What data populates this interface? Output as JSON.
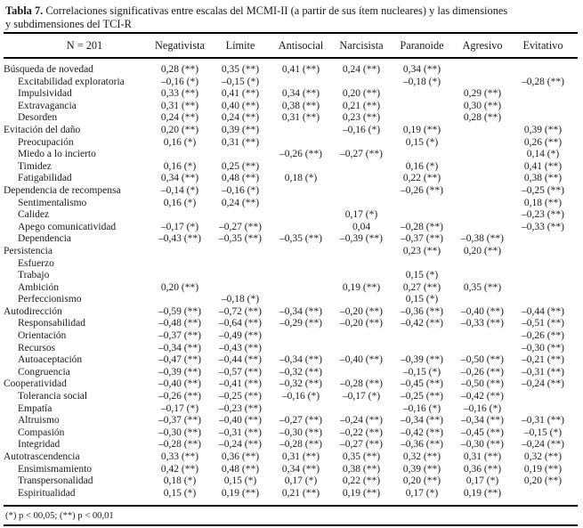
{
  "page": {
    "title_bold": "Tabla 7.",
    "title_rest_line1": " Correlaciones significativas entre escalas del MCMI-II (a partir de sus ítem nucleares) y las dimensiones",
    "title_line2": "y subdimensiones del TCI-R",
    "footnote": "(*) p < 00,05; (**) p < 00,01"
  },
  "table": {
    "columns": [
      "N = 201",
      "Negativista",
      "Límite",
      "Antisocial",
      "Narcisista",
      "Paranoide",
      "Agresivo",
      "Evitativo"
    ],
    "rows": [
      {
        "label": "Búsqueda de novedad",
        "indent": 0,
        "values": [
          "0,28 (**)",
          "0,35 (**)",
          "0,41 (**)",
          "0,24 (**)",
          "0,34 (**)",
          "",
          ""
        ]
      },
      {
        "label": "Excitabilidad exploratoria",
        "indent": 1,
        "values": [
          "–0,16 (*)",
          "–0,15 (*)",
          "",
          "",
          "–0,18 (*)",
          "",
          "–0,28 (**)"
        ]
      },
      {
        "label": "Impulsividad",
        "indent": 1,
        "values": [
          "0,33 (**)",
          "0,41 (**)",
          "0,34 (**)",
          "0,20 (**)",
          "",
          "0,29 (**)",
          ""
        ]
      },
      {
        "label": "Extravagancia",
        "indent": 1,
        "values": [
          "0,31 (**)",
          "0,40 (**)",
          "0,38 (**)",
          "0,21 (**)",
          "",
          "0,30 (**)",
          ""
        ]
      },
      {
        "label": "Desorden",
        "indent": 1,
        "values": [
          "0,24 (**)",
          "0,24 (**)",
          "0,31 (**)",
          "0,23 (**)",
          "",
          "0,28 (**)",
          ""
        ]
      },
      {
        "label": "Evitación del daño",
        "indent": 0,
        "values": [
          "0,20 (**)",
          "0,39 (**)",
          "",
          "–0,16 (*)",
          "0,19 (**)",
          "",
          "0,39 (**)"
        ]
      },
      {
        "label": "Preocupación",
        "indent": 1,
        "values": [
          "0,16 (*)",
          "0,31 (**)",
          "",
          "",
          "0,15 (*)",
          "",
          "0,26 (**)"
        ]
      },
      {
        "label": "Miedo a lo incierto",
        "indent": 1,
        "values": [
          "",
          "",
          "–0,26 (**)",
          "–0,27 (**)",
          "",
          "",
          "0,14 (*)"
        ]
      },
      {
        "label": "Timidez",
        "indent": 1,
        "values": [
          "0,16 (*)",
          "0,25 (**)",
          "",
          "",
          "0,16 (*)",
          "",
          "0,41 (**)"
        ]
      },
      {
        "label": "Fatigabilidad",
        "indent": 1,
        "values": [
          "0,34 (**)",
          "0,48 (**)",
          "0,18 (*)",
          "",
          "0,22 (**)",
          "",
          "0,38 (**)"
        ]
      },
      {
        "label": "Dependencia de recompensa",
        "indent": 0,
        "values": [
          "–0,14 (*)",
          "–0,16 (*)",
          "",
          "",
          "–0,26 (**)",
          "",
          "–0,25 (**)"
        ]
      },
      {
        "label": "Sentimentalismo",
        "indent": 1,
        "values": [
          "0,16 (*)",
          "0,24 (**)",
          "",
          "",
          "",
          "",
          "0,18 (**)"
        ]
      },
      {
        "label": "Calidez",
        "indent": 1,
        "values": [
          "",
          "",
          "",
          "0,17 (*)",
          "",
          "",
          "–0,23 (**)"
        ]
      },
      {
        "label": "Apego comunicatividad",
        "indent": 1,
        "values": [
          "–0,17 (*)",
          "–0,27 (**)",
          "",
          "0,04",
          "–0,28 (**)",
          "",
          "–0,33 (**)"
        ]
      },
      {
        "label": "Dependencia",
        "indent": 1,
        "values": [
          "–0,43 (**)",
          "–0,35 (**)",
          "–0,35 (**)",
          "–0,39 (**)",
          "–0,37 (**)",
          "–0,38 (**)",
          ""
        ]
      },
      {
        "label": "Persistencia",
        "indent": 0,
        "values": [
          "",
          "",
          "",
          "",
          "0,23 (**)",
          "0,20 (**)",
          ""
        ]
      },
      {
        "label": "Esfuerzo",
        "indent": 1,
        "values": [
          "",
          "",
          "",
          "",
          "",
          "",
          ""
        ]
      },
      {
        "label": "Trabajo",
        "indent": 1,
        "values": [
          "",
          "",
          "",
          "",
          "0,15 (*)",
          "",
          ""
        ]
      },
      {
        "label": "Ambición",
        "indent": 1,
        "values": [
          "0,20 (**)",
          "",
          "",
          "0,19 (**)",
          "0,27 (**)",
          "0,35 (**)",
          ""
        ]
      },
      {
        "label": "Perfeccionismo",
        "indent": 1,
        "values": [
          "",
          "–0,18 (*)",
          "",
          "",
          "0,15 (*)",
          "",
          ""
        ]
      },
      {
        "label": "Autodirección",
        "indent": 0,
        "values": [
          "–0,59 (**)",
          "–0,72 (**)",
          "–0,34 (**)",
          "–0,20 (**)",
          "–0,36 (**)",
          "–0,40 (**)",
          "–0,44 (**)"
        ]
      },
      {
        "label": "Responsabilidad",
        "indent": 1,
        "values": [
          "–0,48 (**)",
          "–0,64 (**)",
          "–0,29 (**)",
          "–0,20 (**)",
          "–0,42 (**)",
          "–0,33 (**)",
          "–0,51 (**)"
        ]
      },
      {
        "label": "Orientación",
        "indent": 1,
        "values": [
          "–0,37 (**)",
          "–0,49 (**)",
          "",
          "",
          "",
          "",
          "–0,26 (**)"
        ]
      },
      {
        "label": "Recursos",
        "indent": 1,
        "values": [
          "–0,34 (**)",
          "–0,43 (**)",
          "",
          "",
          "",
          "",
          "–0,30 (**)"
        ]
      },
      {
        "label": "Autoaceptación",
        "indent": 1,
        "values": [
          "–0,47 (**)",
          "–0,44 (**)",
          "–0,34 (**)",
          "–0,40 (**)",
          "–0,39 (**)",
          "–0,50 (**)",
          "–0,21 (**)"
        ]
      },
      {
        "label": "Congruencia",
        "indent": 1,
        "values": [
          "–0,39 (**)",
          "–0,57 (**)",
          "–0,32 (**)",
          "",
          "–0,15 (*)",
          "–0,26 (**)",
          "–0,31 (**)"
        ]
      },
      {
        "label": "Cooperatividad",
        "indent": 0,
        "values": [
          "–0,40 (**)",
          "–0,41 (**)",
          "–0,32 (**)",
          "–0,28 (**)",
          "–0,45 (**)",
          "–0,50 (**)",
          "–0,24 (**)"
        ]
      },
      {
        "label": "Tolerancia social",
        "indent": 1,
        "values": [
          "–0,26 (**)",
          "–0,25 (**)",
          "–0,16 (*)",
          "–0,17 (*)",
          "–0,25 (**)",
          "–0,42 (**)",
          ""
        ]
      },
      {
        "label": "Empatía",
        "indent": 1,
        "values": [
          "–0,17 (*)",
          "–0,23 (**)",
          "",
          "",
          "–0,16 (*)",
          "–0,16 (*)",
          ""
        ]
      },
      {
        "label": "Altruismo",
        "indent": 1,
        "values": [
          "–0,37 (**)",
          "–0,40 (**)",
          "–0,27 (**)",
          "–0,24 (**)",
          "–0,34 (**)",
          "–0,34 (**)",
          "–0,31 (**)"
        ]
      },
      {
        "label": "Compasión",
        "indent": 1,
        "values": [
          "–0,30 (**)",
          "–0,31 (**)",
          "–0,30 (**)",
          "–0,22 (**)",
          "–0,42 (**)",
          "–0,45 (**)",
          "–0,15 (*)"
        ]
      },
      {
        "label": "Integridad",
        "indent": 1,
        "values": [
          "–0,28 (**)",
          "–0,24 (**)",
          "–0,28 (**)",
          "–0,27 (**)",
          "–0,36 (**)",
          "–0,30 (**)",
          "–0,24 (**)"
        ]
      },
      {
        "label": "Autotrascendencia",
        "indent": 0,
        "values": [
          "0,33 (**)",
          "0,36 (**)",
          "0,31 (**)",
          "0,35 (**)",
          "0,32 (**)",
          "0,31 (**)",
          "0,32 (**)"
        ]
      },
      {
        "label": "Ensimismamiento",
        "indent": 1,
        "values": [
          "0,42 (**)",
          "0,48 (**)",
          "0,34 (**)",
          "0,38 (**)",
          "0,39 (**)",
          "0,36 (**)",
          "0,19 (**)"
        ]
      },
      {
        "label": "Transpersonalidad",
        "indent": 1,
        "values": [
          "0,18 (*)",
          "0,15 (*)",
          "0,17 (*)",
          "0,22 (**)",
          "0,20 (**)",
          "0,17 (*)",
          "0,20 (**)"
        ]
      },
      {
        "label": "Espiritualidad",
        "indent": 1,
        "values": [
          "0,15 (*)",
          "0,19 (**)",
          "0,21 (**)",
          "0,19 (**)",
          "0,17 (*)",
          "0,19 (**)",
          ""
        ]
      }
    ]
  }
}
